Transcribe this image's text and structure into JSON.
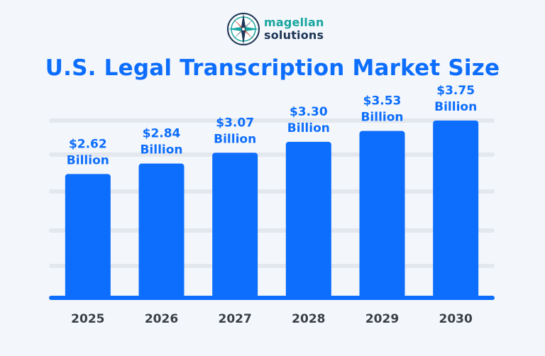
{
  "logo": {
    "word1": "magellan",
    "word2": "solutions",
    "icon": "compass-rose-icon"
  },
  "colors": {
    "bar": "#0d6efd",
    "title": "#0d6efd",
    "label": "#0d6efd",
    "year": "#3a3f47",
    "grid": "#e3e7ee",
    "background": "#f3f6fb"
  },
  "chart_data": {
    "type": "bar",
    "title": "U.S. Legal Transcription Market Size",
    "categories": [
      "2025",
      "2026",
      "2027",
      "2028",
      "2029",
      "2030"
    ],
    "values": [
      2.62,
      2.84,
      3.07,
      3.3,
      3.53,
      3.75
    ],
    "value_labels": [
      [
        "$2.62",
        "Billion"
      ],
      [
        "$2.84",
        "Billion"
      ],
      [
        "$3.07",
        "Billion"
      ],
      [
        "$3.30",
        "Billion"
      ],
      [
        "$3.53",
        "Billion"
      ],
      [
        "$3.75",
        "Billion"
      ]
    ],
    "xlabel": "",
    "ylabel": "",
    "ylim": [
      0,
      4.2
    ],
    "grid": true,
    "legend": "none"
  }
}
